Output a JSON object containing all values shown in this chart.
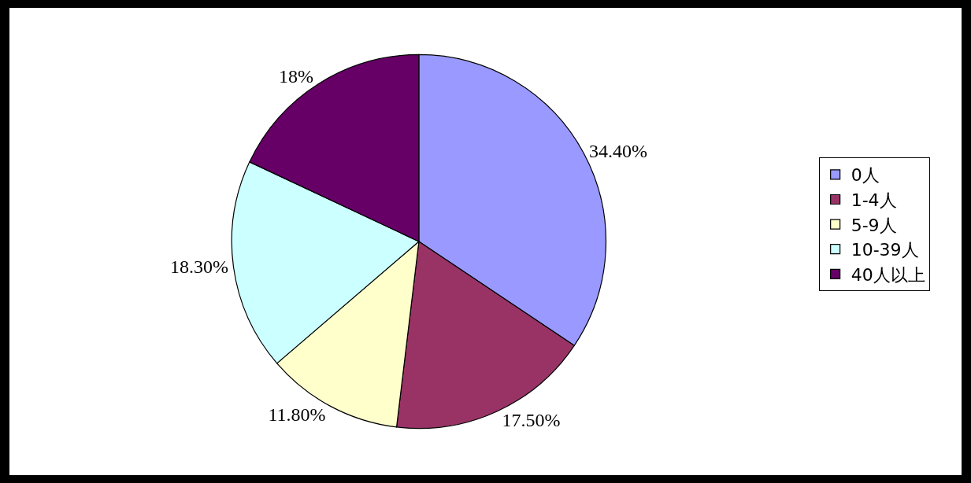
{
  "chart_data": {
    "type": "pie",
    "categories": [
      "0人",
      "1-4人",
      "5-9人",
      "10-39人",
      "40人以上"
    ],
    "values": [
      34.4,
      17.5,
      11.8,
      18.3,
      18
    ],
    "colors": [
      "#9999ff",
      "#993366",
      "#ffffcc",
      "#ccffff",
      "#660066"
    ],
    "value_labels": [
      "34.40%",
      "17.50%",
      "11.80%",
      "18.30%",
      "18%"
    ],
    "legend": "right"
  }
}
